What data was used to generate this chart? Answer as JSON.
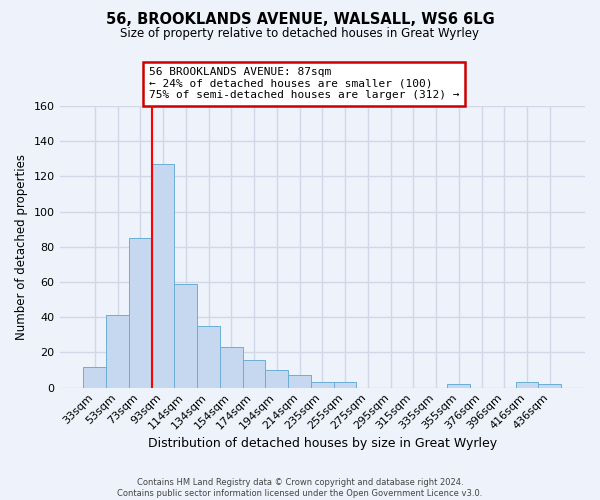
{
  "title": "56, BROOKLANDS AVENUE, WALSALL, WS6 6LG",
  "subtitle": "Size of property relative to detached houses in Great Wyrley",
  "xlabel": "Distribution of detached houses by size in Great Wyrley",
  "ylabel": "Number of detached properties",
  "footer_line1": "Contains HM Land Registry data © Crown copyright and database right 2024.",
  "footer_line2": "Contains public sector information licensed under the Open Government Licence v3.0.",
  "bar_labels": [
    "33sqm",
    "53sqm",
    "73sqm",
    "93sqm",
    "114sqm",
    "134sqm",
    "154sqm",
    "174sqm",
    "194sqm",
    "214sqm",
    "235sqm",
    "255sqm",
    "275sqm",
    "295sqm",
    "315sqm",
    "335sqm",
    "355sqm",
    "376sqm",
    "396sqm",
    "416sqm",
    "436sqm"
  ],
  "bar_values": [
    12,
    41,
    85,
    127,
    59,
    35,
    23,
    16,
    10,
    7,
    3,
    3,
    0,
    0,
    0,
    0,
    2,
    0,
    0,
    3,
    2
  ],
  "bar_color": "#c5d8f0",
  "bar_edge_color": "#6baed6",
  "vline_color": "red",
  "vline_position": 3,
  "ylim": [
    0,
    160
  ],
  "yticks": [
    0,
    20,
    40,
    60,
    80,
    100,
    120,
    140,
    160
  ],
  "annotation_text": "56 BROOKLANDS AVENUE: 87sqm\n← 24% of detached houses are smaller (100)\n75% of semi-detached houses are larger (312) →",
  "annotation_box_edgecolor": "#cc0000",
  "annotation_box_facecolor": "white",
  "background_color": "#eef2fa",
  "grid_color": "#d0d8e8"
}
